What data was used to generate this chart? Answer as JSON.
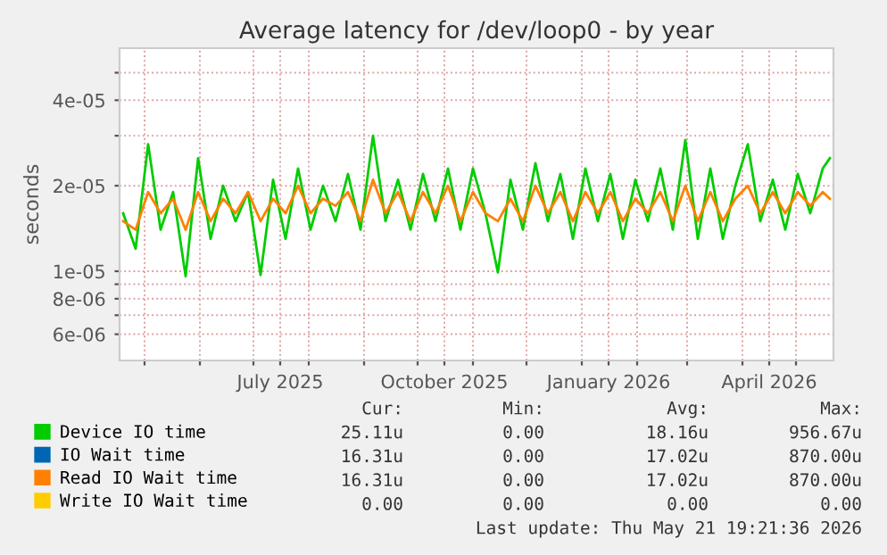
{
  "chart_data": {
    "type": "line",
    "title": "Average latency for /dev/loop0 - by year",
    "ylabel": "seconds",
    "log": "y",
    "x": [
      "2025-04-19",
      "2025-04-26",
      "2025-05-03",
      "2025-05-10",
      "2025-05-17",
      "2025-05-24",
      "2025-05-31",
      "2025-06-07",
      "2025-06-14",
      "2025-06-21",
      "2025-06-28",
      "2025-07-05",
      "2025-07-12",
      "2025-07-19",
      "2025-07-26",
      "2025-08-02",
      "2025-08-09",
      "2025-08-16",
      "2025-08-23",
      "2025-08-30",
      "2025-09-06",
      "2025-09-13",
      "2025-09-20",
      "2025-09-27",
      "2025-10-04",
      "2025-10-11",
      "2025-10-18",
      "2025-10-25",
      "2025-11-01",
      "2025-11-08",
      "2025-11-15",
      "2025-11-22",
      "2025-11-29",
      "2025-12-06",
      "2025-12-13",
      "2025-12-20",
      "2025-12-27",
      "2026-01-03",
      "2026-01-10",
      "2026-01-17",
      "2026-01-24",
      "2026-01-31",
      "2026-02-07",
      "2026-02-14",
      "2026-02-21",
      "2026-02-28",
      "2026-03-07",
      "2026-03-14",
      "2026-03-21",
      "2026-03-28",
      "2026-04-04",
      "2026-04-11",
      "2026-04-18",
      "2026-04-25",
      "2026-05-02",
      "2026-05-09",
      "2026-05-16",
      "2026-05-20"
    ],
    "series": [
      {
        "name": "Device IO time",
        "color": "#00cc00",
        "values": [
          1.6e-05,
          1.2e-05,
          2.8e-05,
          1.4e-05,
          1.9e-05,
          9.6e-06,
          2.5e-05,
          1.3e-05,
          2e-05,
          1.5e-05,
          1.9e-05,
          9.7e-06,
          2.1e-05,
          1.3e-05,
          2.3e-05,
          1.4e-05,
          2e-05,
          1.5e-05,
          2.2e-05,
          1.4e-05,
          3e-05,
          1.5e-05,
          2.1e-05,
          1.4e-05,
          2.2e-05,
          1.5e-05,
          2.3e-05,
          1.4e-05,
          2.3e-05,
          1.6e-05,
          9.9e-06,
          2.1e-05,
          1.4e-05,
          2.4e-05,
          1.5e-05,
          2.2e-05,
          1.3e-05,
          2.3e-05,
          1.5e-05,
          2.2e-05,
          1.3e-05,
          2.1e-05,
          1.5e-05,
          2.3e-05,
          1.4e-05,
          2.9e-05,
          1.3e-05,
          2.3e-05,
          1.3e-05,
          2e-05,
          2.8e-05,
          1.5e-05,
          2.1e-05,
          1.4e-05,
          2.2e-05,
          1.6e-05,
          2.3e-05,
          2.5e-05
        ]
      },
      {
        "name": "IO Wait time",
        "color": "#0066b3",
        "values": [
          null,
          null,
          null,
          null,
          null,
          null,
          null,
          null,
          null,
          null,
          null,
          null,
          null,
          null,
          null,
          null,
          null,
          null,
          null,
          null,
          null,
          null,
          null,
          null,
          null,
          null,
          null,
          null,
          null,
          null,
          null,
          null,
          null,
          null,
          null,
          null,
          null,
          null,
          null,
          null,
          null,
          null,
          null,
          null,
          null,
          null,
          null,
          null,
          null,
          null,
          null,
          null,
          null,
          null,
          null,
          null,
          null,
          null
        ]
      },
      {
        "name": "Read IO Wait time",
        "color": "#ff8000",
        "values": [
          1.5e-05,
          1.4e-05,
          1.9e-05,
          1.6e-05,
          1.8e-05,
          1.4e-05,
          1.9e-05,
          1.5e-05,
          1.8e-05,
          1.6e-05,
          1.9e-05,
          1.5e-05,
          1.8e-05,
          1.6e-05,
          2e-05,
          1.6e-05,
          1.8e-05,
          1.7e-05,
          1.9e-05,
          1.5e-05,
          2.1e-05,
          1.6e-05,
          1.9e-05,
          1.5e-05,
          1.9e-05,
          1.6e-05,
          2e-05,
          1.5e-05,
          1.9e-05,
          1.6e-05,
          1.5e-05,
          1.8e-05,
          1.5e-05,
          2e-05,
          1.6e-05,
          1.9e-05,
          1.5e-05,
          1.9e-05,
          1.6e-05,
          1.9e-05,
          1.5e-05,
          1.8e-05,
          1.6e-05,
          1.9e-05,
          1.5e-05,
          2e-05,
          1.5e-05,
          1.9e-05,
          1.5e-05,
          1.8e-05,
          2e-05,
          1.6e-05,
          1.9e-05,
          1.6e-05,
          1.9e-05,
          1.7e-05,
          1.9e-05,
          1.8e-05
        ]
      },
      {
        "name": "Write IO Wait time",
        "color": "#ffcc00",
        "values": [
          null,
          null,
          null,
          null,
          null,
          null,
          null,
          null,
          null,
          null,
          null,
          null,
          null,
          null,
          null,
          null,
          null,
          null,
          null,
          null,
          null,
          null,
          null,
          null,
          null,
          null,
          null,
          null,
          null,
          null,
          null,
          null,
          null,
          null,
          null,
          null,
          null,
          null,
          null,
          null,
          null,
          null,
          null,
          null,
          null,
          null,
          null,
          null,
          null,
          null,
          null,
          null,
          null,
          null,
          null,
          null,
          null,
          null
        ]
      }
    ],
    "xlim": [
      "2025-04-17",
      "2026-05-22"
    ],
    "xticks": [
      {
        "value": "2025-05-01",
        "label": null
      },
      {
        "value": "2025-06-01",
        "label": null
      },
      {
        "value": "2025-07-01",
        "label": null
      },
      {
        "value": "2025-07-16",
        "label": "July 2025"
      },
      {
        "value": "2025-08-01",
        "label": null
      },
      {
        "value": "2025-09-01",
        "label": null
      },
      {
        "value": "2025-10-01",
        "label": null
      },
      {
        "value": "2025-10-16",
        "label": "October 2025"
      },
      {
        "value": "2025-11-01",
        "label": null
      },
      {
        "value": "2025-12-01",
        "label": null
      },
      {
        "value": "2026-01-01",
        "label": null
      },
      {
        "value": "2026-01-16",
        "label": "January 2026"
      },
      {
        "value": "2026-02-01",
        "label": null
      },
      {
        "value": "2026-03-01",
        "label": null
      },
      {
        "value": "2026-04-01",
        "label": null
      },
      {
        "value": "2026-04-16",
        "label": "April 2026"
      },
      {
        "value": "2026-05-01",
        "label": null
      }
    ],
    "ylim": [
      4.85e-06,
      6.1e-05
    ],
    "yticks": [
      6e-06,
      {
        "value": 7e-06,
        "label": null
      },
      8e-06,
      {
        "value": 9e-06,
        "label": null
      },
      1e-05,
      2e-05,
      {
        "value": 3e-05,
        "label": null
      },
      4e-05,
      {
        "value": 5e-05,
        "label": null
      }
    ],
    "grid": true,
    "legend": "bottom",
    "annotations": [
      "Cur:",
      "Min:",
      "Avg:",
      "Max:",
      "25.11u",
      "0.00",
      "18.16u",
      "956.67u",
      "16.31u",
      "0.00",
      "17.02u",
      "870.00u",
      "16.31u",
      "0.00",
      "17.02u",
      "870.00u",
      "0.00",
      "0.00",
      "0.00",
      "0.00",
      "Last update: Thu May 21 19:21:36 2026"
    ]
  }
}
